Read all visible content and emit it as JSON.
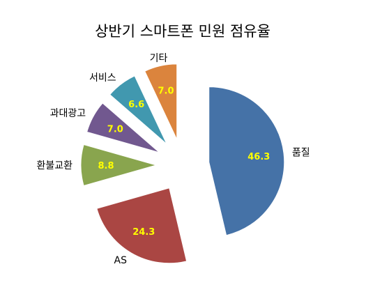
{
  "chart_data": {
    "type": "pie",
    "title": "상반기 스마트폰 민원 점유율",
    "exploded": true,
    "legend": "none",
    "slices": [
      {
        "label": "품질",
        "value": 46.3,
        "value_text": "46.3",
        "color": "#4572a7"
      },
      {
        "label": "AS",
        "value": 24.3,
        "value_text": "24.3",
        "color": "#aa4643"
      },
      {
        "label": "환불교환",
        "value": 8.8,
        "value_text": "8.8",
        "color": "#89a54e"
      },
      {
        "label": "과대광고",
        "value": 7.0,
        "value_text": "7.0",
        "color": "#71588f"
      },
      {
        "label": "서비스",
        "value": 6.6,
        "value_text": "6.6",
        "color": "#4198af"
      },
      {
        "label": "기타",
        "value": 7.0,
        "value_text": "7.0",
        "color": "#db843d"
      }
    ]
  }
}
